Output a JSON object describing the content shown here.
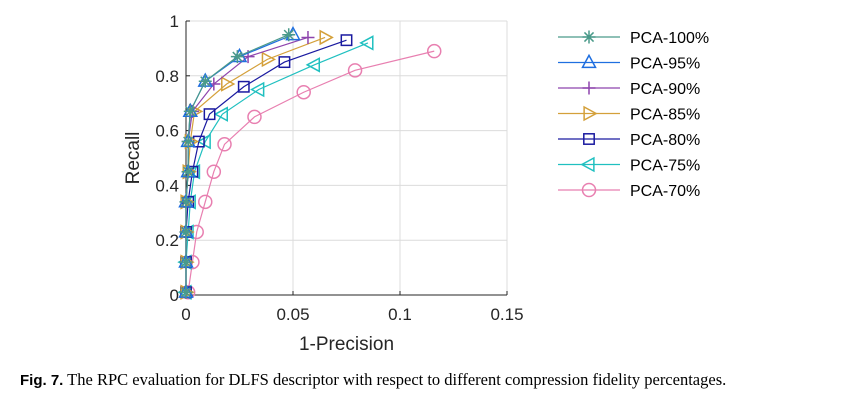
{
  "chart_data": {
    "type": "line",
    "title": "",
    "xlabel": "1-Precision",
    "ylabel": "Recall",
    "xlim": [
      0,
      0.15
    ],
    "ylim": [
      0,
      1
    ],
    "xticks": [
      0,
      0.05,
      0.1,
      0.15
    ],
    "xtick_labels": [
      "0",
      "0.05",
      "0.1",
      "0.15"
    ],
    "yticks": [
      0,
      0.2,
      0.4,
      0.6,
      0.8,
      1
    ],
    "ytick_labels": [
      "0",
      "0.2",
      "0.4",
      "0.6",
      "0.8",
      "1"
    ],
    "grid": true,
    "legend_position": "outside-right",
    "series": [
      {
        "name": "PCA-100%",
        "color": "#4a9a8a",
        "marker": "asterisk",
        "x": [
          0,
          0,
          0,
          0,
          0.001,
          0.001,
          0.002,
          0.009,
          0.024,
          0.048
        ],
        "y": [
          0.01,
          0.12,
          0.23,
          0.34,
          0.45,
          0.56,
          0.67,
          0.78,
          0.87,
          0.95
        ]
      },
      {
        "name": "PCA-95%",
        "color": "#1f6fe0",
        "marker": "triangle-up",
        "x": [
          0,
          0,
          0,
          0,
          0.001,
          0.001,
          0.002,
          0.009,
          0.025,
          0.05
        ],
        "y": [
          0.01,
          0.12,
          0.23,
          0.34,
          0.45,
          0.56,
          0.67,
          0.78,
          0.87,
          0.95
        ]
      },
      {
        "name": "PCA-90%",
        "color": "#8e44ad",
        "marker": "plus",
        "x": [
          0,
          0,
          0,
          0,
          0.001,
          0.001,
          0.003,
          0.013,
          0.029,
          0.057
        ],
        "y": [
          0.01,
          0.12,
          0.23,
          0.34,
          0.45,
          0.56,
          0.67,
          0.77,
          0.87,
          0.94
        ]
      },
      {
        "name": "PCA-85%",
        "color": "#d4a03a",
        "marker": "triangle-right",
        "x": [
          0,
          0,
          0,
          0,
          0.001,
          0.002,
          0.004,
          0.019,
          0.038,
          0.065
        ],
        "y": [
          0.01,
          0.12,
          0.23,
          0.34,
          0.45,
          0.56,
          0.67,
          0.77,
          0.86,
          0.94
        ]
      },
      {
        "name": "PCA-80%",
        "color": "#1a1aa0",
        "marker": "square",
        "x": [
          0,
          0,
          0,
          0.001,
          0.003,
          0.006,
          0.011,
          0.027,
          0.046,
          0.075
        ],
        "y": [
          0.01,
          0.12,
          0.23,
          0.34,
          0.45,
          0.56,
          0.66,
          0.76,
          0.85,
          0.93
        ]
      },
      {
        "name": "PCA-75%",
        "color": "#20c0c0",
        "marker": "triangle-left",
        "x": [
          0,
          0,
          0.001,
          0.002,
          0.004,
          0.009,
          0.017,
          0.034,
          0.06,
          0.085
        ],
        "y": [
          0.01,
          0.12,
          0.23,
          0.34,
          0.45,
          0.56,
          0.66,
          0.75,
          0.84,
          0.92
        ]
      },
      {
        "name": "PCA-70%",
        "color": "#e87fb0",
        "marker": "circle",
        "x": [
          0.001,
          0.003,
          0.005,
          0.009,
          0.013,
          0.018,
          0.032,
          0.055,
          0.079,
          0.116
        ],
        "y": [
          0.01,
          0.12,
          0.23,
          0.34,
          0.45,
          0.55,
          0.65,
          0.74,
          0.82,
          0.89
        ]
      }
    ]
  },
  "caption": {
    "fig_number": "Fig. 7.",
    "text": " The RPC evaluation for DLFS descriptor with respect to different compression fidelity percentages."
  }
}
